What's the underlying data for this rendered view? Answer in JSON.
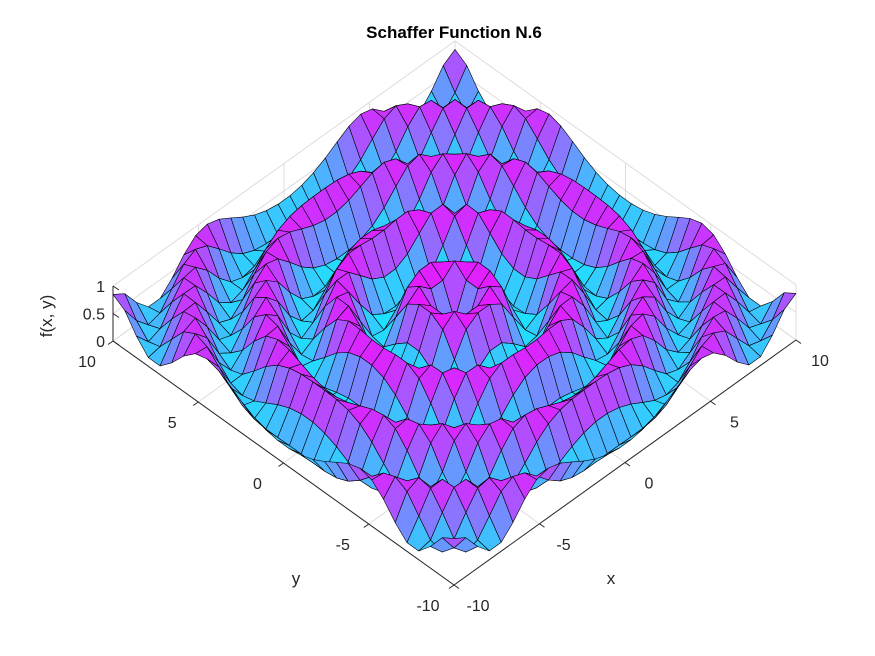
{
  "chart_data": {
    "type": "surface",
    "title": "Schaffer Function N.6",
    "xlabel": "x",
    "ylabel": "y",
    "zlabel": "f(x, y)",
    "function": "0.5 + (sin^2(sqrt(x^2+y^2)) - 0.5) / (1 + 0.001*(x^2+y^2))^2",
    "xlim": [
      -10,
      10
    ],
    "ylim": [
      -10,
      10
    ],
    "zlim": [
      0,
      1
    ],
    "x_ticks": [
      -10,
      -5,
      0,
      5,
      10
    ],
    "y_ticks": [
      -10,
      -5,
      0,
      5,
      10
    ],
    "z_ticks": [
      0,
      0.5,
      1
    ],
    "x_tick_labels": [
      "-10",
      "-5",
      "0",
      "5",
      "10"
    ],
    "y_tick_labels": [
      "-10",
      "-5",
      "0",
      "5",
      "10"
    ],
    "z_tick_labels": [
      "0",
      "0.5",
      "1"
    ],
    "grid_points": 30,
    "colormap": "cool",
    "colormap_colors": [
      "#00ffff",
      "#ff00ff"
    ],
    "edge_color": "#000000",
    "grid": true,
    "box_color": "#262626",
    "grid_color": "#dcdcdc"
  }
}
